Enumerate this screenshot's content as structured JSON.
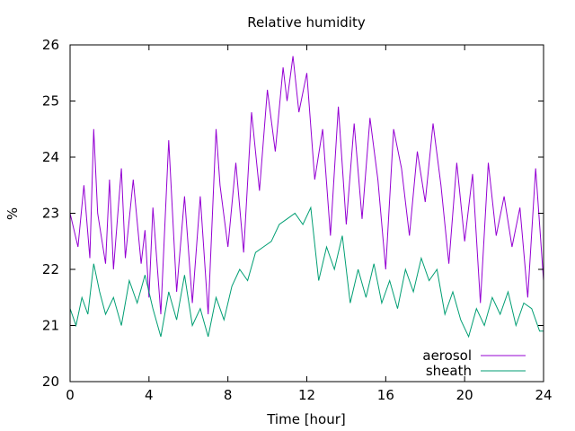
{
  "chart_data": {
    "type": "line",
    "title": "Relative humidity",
    "xlabel": "Time [hour]",
    "ylabel": "%",
    "xlim": [
      0,
      24
    ],
    "ylim": [
      20,
      26
    ],
    "x_ticks": [
      "0",
      "4",
      "8",
      "12",
      "16",
      "20",
      "24"
    ],
    "y_ticks": [
      "20",
      "21",
      "22",
      "23",
      "24",
      "25",
      "26"
    ],
    "grid": false,
    "legend_position": "bottom-right",
    "series": [
      {
        "name": "aerosol",
        "color": "#9400d3",
        "x": [
          0,
          0.4,
          0.7,
          1.0,
          1.2,
          1.4,
          1.8,
          2.0,
          2.2,
          2.6,
          2.8,
          3.2,
          3.6,
          3.8,
          4.0,
          4.2,
          4.6,
          5.0,
          5.4,
          5.8,
          6.2,
          6.6,
          7.0,
          7.4,
          7.6,
          8.0,
          8.4,
          8.8,
          9.2,
          9.6,
          10.0,
          10.4,
          10.8,
          11.0,
          11.3,
          11.6,
          12.0,
          12.4,
          12.8,
          13.2,
          13.6,
          14.0,
          14.4,
          14.8,
          15.2,
          15.6,
          16.0,
          16.4,
          16.8,
          17.2,
          17.6,
          18.0,
          18.4,
          18.8,
          19.2,
          19.6,
          20.0,
          20.4,
          20.8,
          21.2,
          21.6,
          22.0,
          22.4,
          22.8,
          23.2,
          23.6,
          24.0
        ],
        "values": [
          23.0,
          22.4,
          23.5,
          22.2,
          24.5,
          23.0,
          22.1,
          23.6,
          22.0,
          23.8,
          22.2,
          23.6,
          22.1,
          22.7,
          21.5,
          23.1,
          21.2,
          24.3,
          21.6,
          23.3,
          21.4,
          23.3,
          21.2,
          24.5,
          23.5,
          22.4,
          23.9,
          22.3,
          24.8,
          23.4,
          25.2,
          24.1,
          25.6,
          25.0,
          25.8,
          24.8,
          25.5,
          23.6,
          24.5,
          22.6,
          24.9,
          22.8,
          24.6,
          22.9,
          24.7,
          23.6,
          22.0,
          24.5,
          23.8,
          22.6,
          24.1,
          23.2,
          24.6,
          23.5,
          22.1,
          23.9,
          22.5,
          23.7,
          21.4,
          23.9,
          22.6,
          23.3,
          22.4,
          23.1,
          21.5,
          23.8,
          21.8
        ]
      },
      {
        "name": "sheath",
        "color": "#009e73",
        "x": [
          0,
          0.3,
          0.6,
          0.9,
          1.2,
          1.5,
          1.8,
          2.2,
          2.6,
          3.0,
          3.4,
          3.8,
          4.2,
          4.6,
          5.0,
          5.4,
          5.8,
          6.2,
          6.6,
          7.0,
          7.4,
          7.8,
          8.2,
          8.6,
          9.0,
          9.4,
          9.8,
          10.2,
          10.6,
          11.0,
          11.4,
          11.8,
          12.2,
          12.6,
          13.0,
          13.4,
          13.8,
          14.2,
          14.6,
          15.0,
          15.4,
          15.8,
          16.2,
          16.6,
          17.0,
          17.4,
          17.8,
          18.2,
          18.6,
          19.0,
          19.4,
          19.8,
          20.2,
          20.6,
          21.0,
          21.4,
          21.8,
          22.2,
          22.6,
          23.0,
          23.4,
          23.8,
          24.0
        ],
        "values": [
          21.3,
          21.0,
          21.5,
          21.2,
          22.1,
          21.6,
          21.2,
          21.5,
          21.0,
          21.8,
          21.4,
          21.9,
          21.3,
          20.8,
          21.6,
          21.1,
          21.9,
          21.0,
          21.3,
          20.8,
          21.5,
          21.1,
          21.7,
          22.0,
          21.8,
          22.3,
          22.4,
          22.5,
          22.8,
          22.9,
          23.0,
          22.8,
          23.1,
          21.8,
          22.4,
          22.0,
          22.6,
          21.4,
          22.0,
          21.5,
          22.1,
          21.4,
          21.8,
          21.3,
          22.0,
          21.6,
          22.2,
          21.8,
          22.0,
          21.2,
          21.6,
          21.1,
          20.8,
          21.3,
          21.0,
          21.5,
          21.2,
          21.6,
          21.0,
          21.4,
          21.3,
          20.9,
          20.9
        ]
      }
    ]
  }
}
